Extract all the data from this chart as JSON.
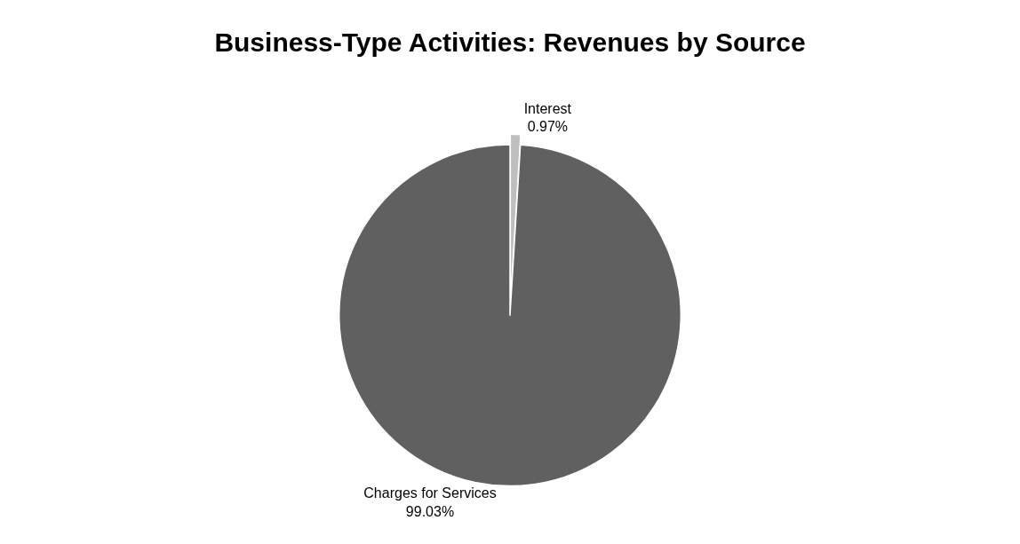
{
  "chart_data": {
    "type": "pie",
    "title": "Business-Type Activities: Revenues by Source",
    "categories": [
      "Interest",
      "Charges for Services"
    ],
    "values": [
      0.97,
      99.03
    ],
    "value_labels": [
      "0.97%",
      "99.03%"
    ],
    "colors": [
      "#bfbfbf",
      "#606060"
    ],
    "legend": false
  }
}
